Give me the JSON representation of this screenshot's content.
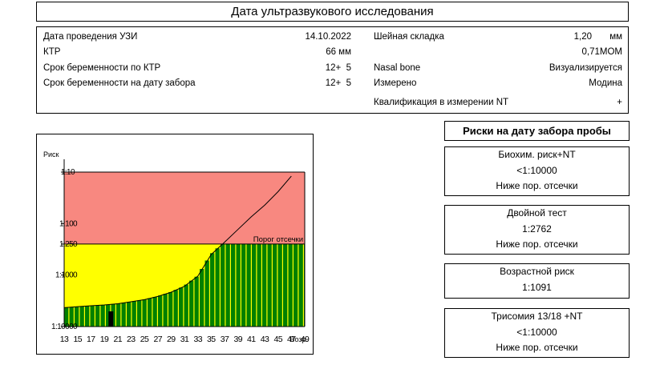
{
  "header": {
    "title": "Дата ультразвукового исследования"
  },
  "info": {
    "left": [
      {
        "label": "Дата проведения УЗИ",
        "value": "14.10.2022"
      },
      {
        "label": "КТР",
        "value": "66 мм"
      },
      {
        "label": "Срок беременности по КТР",
        "value": "12+  5"
      },
      {
        "label": "Срок беременности на дату забора",
        "value": "12+  5"
      }
    ],
    "right": [
      {
        "label": "Шейная складка",
        "value": "1,20",
        "unit": "мм"
      },
      {
        "label": "",
        "value": "0,71МОМ"
      },
      {
        "label": "Nasal bone",
        "value": "Визуализируется"
      },
      {
        "label": "Измерено",
        "value": "Модина"
      },
      {
        "label": "Квалификация в измерении NT",
        "value": "+"
      }
    ]
  },
  "chart_data": {
    "type": "area",
    "ylabel": "Риск",
    "xlabel": "Возр.",
    "x_ticks": [
      13,
      15,
      17,
      19,
      21,
      23,
      25,
      27,
      29,
      31,
      33,
      35,
      37,
      39,
      41,
      43,
      45,
      47,
      49
    ],
    "xlim": [
      13,
      49
    ],
    "y_ticks": [
      {
        "label": "1:10",
        "value": 10
      },
      {
        "label": "1:100",
        "value": 100
      },
      {
        "label": "1:250",
        "value": 250
      },
      {
        "label": "1:1000",
        "value": 1000
      },
      {
        "label": "1:10000",
        "value": 10000
      }
    ],
    "y_scale": "log-inverted",
    "ylim": [
      10,
      10000
    ],
    "cutoff": {
      "value": 250,
      "label": "Порог отсечки"
    },
    "risk_curve": {
      "x": [
        13,
        15,
        17,
        19,
        21,
        23,
        25,
        27,
        29,
        31,
        33,
        35,
        37,
        39,
        41,
        43,
        45,
        47
      ],
      "y": [
        4300,
        4100,
        3950,
        3800,
        3600,
        3300,
        3000,
        2600,
        2150,
        1650,
        1050,
        400,
        230,
        130,
        74,
        44,
        24,
        12
      ]
    },
    "patient_marker": {
      "age": 20,
      "value": 10000
    },
    "colors": {
      "high": "#f88880",
      "moderate": "#ffff00",
      "low": "#008000",
      "curve": "#000000"
    }
  },
  "risks": {
    "title": "Риски на дату забора пробы",
    "blocks": [
      {
        "lines": [
          "Биохим. риск+NT",
          "<1:10000",
          "Ниже пор. отсечки"
        ]
      },
      {
        "lines": [
          "Двойной тест",
          "1:2762",
          "Ниже пор. отсечки"
        ]
      },
      {
        "lines": [
          "Возрастной риск",
          "1:1091"
        ]
      },
      {
        "lines": [
          "Трисомия 13/18 +NT",
          "<1:10000",
          "Ниже пор. отсечки"
        ]
      }
    ]
  }
}
